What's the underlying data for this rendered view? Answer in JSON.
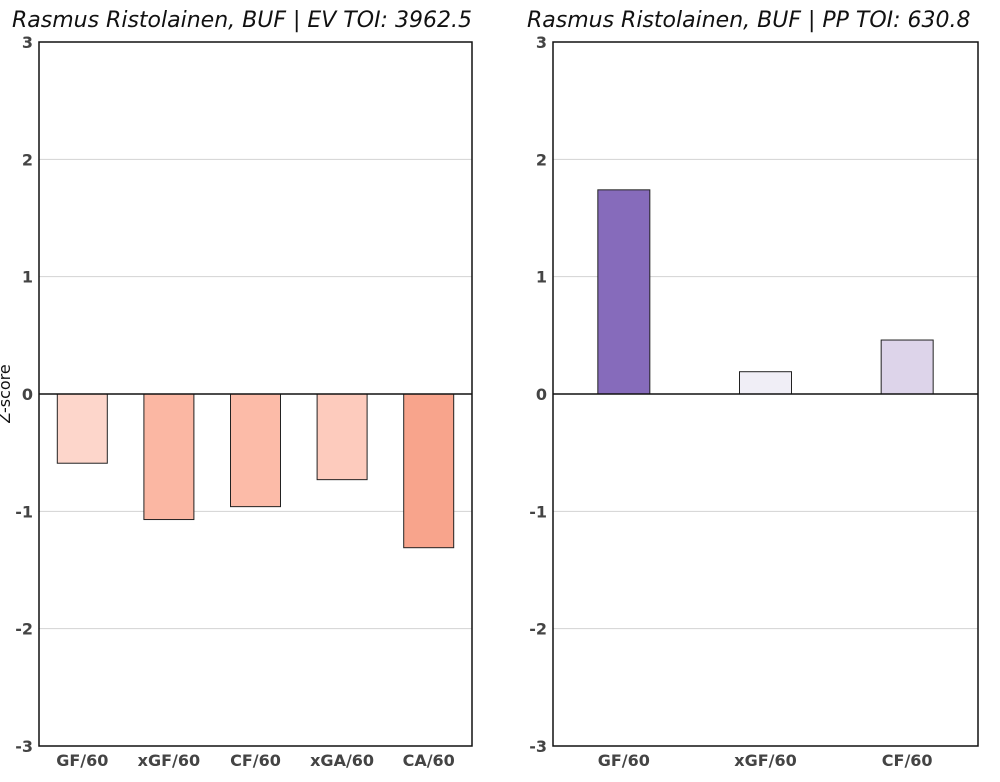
{
  "chart_data": [
    {
      "type": "bar",
      "title": "Rasmus Ristolainen, BUF  |  EV TOI: 3962.5",
      "xlabel": "",
      "ylabel": "Z-score",
      "categories": [
        "GF/60",
        "xGF/60",
        "CF/60",
        "xGA/60",
        "CA/60"
      ],
      "values": [
        -0.59,
        -1.07,
        -0.96,
        -0.73,
        -1.31
      ],
      "colors": [
        "#fdd6cb",
        "#fbb7a3",
        "#fcbba8",
        "#fdcbbd",
        "#f8a48c"
      ],
      "ylim": [
        -3,
        3
      ],
      "yticks": [
        "-3",
        "-2",
        "-1",
        "0",
        "1",
        "2",
        "3"
      ],
      "grid": true
    },
    {
      "type": "bar",
      "title": "Rasmus Ristolainen, BUF  |  PP TOI: 630.8",
      "xlabel": "",
      "ylabel": "",
      "categories": [
        "GF/60",
        "xGF/60",
        "CF/60"
      ],
      "values": [
        1.74,
        0.19,
        0.46
      ],
      "colors": [
        "#866bbb",
        "#f0eef6",
        "#ddd4ea"
      ],
      "ylim": [
        -3,
        3
      ],
      "yticks": [
        "-3",
        "-2",
        "-1",
        "0",
        "1",
        "2",
        "3"
      ],
      "grid": true
    }
  ]
}
